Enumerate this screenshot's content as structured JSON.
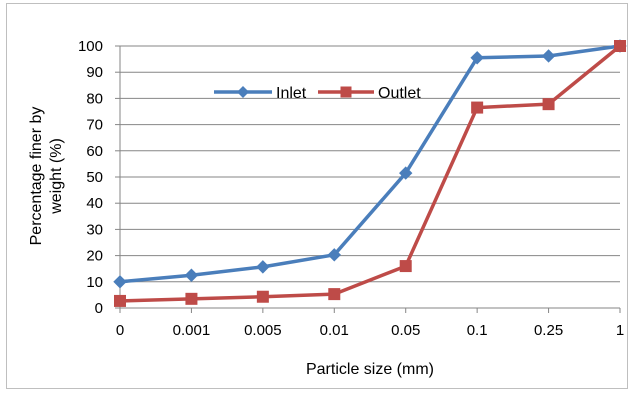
{
  "chart_data": {
    "type": "line",
    "categories": [
      "0",
      "0.001",
      "0.005",
      "0.01",
      "0.05",
      "0.1",
      "0.25",
      "1"
    ],
    "series": [
      {
        "name": "Inlet",
        "color": "#4a7ebb",
        "marker": "diamond",
        "values": [
          10,
          12.5,
          15.7,
          20.3,
          51.5,
          95.5,
          96.2,
          100
        ]
      },
      {
        "name": "Outlet",
        "color": "#be4b48",
        "marker": "square",
        "values": [
          2.7,
          3.5,
          4.3,
          5.3,
          16,
          76.5,
          77.8,
          100
        ]
      }
    ],
    "xlabel": "Particle size (mm)",
    "ylabel_line1": "Percentage finer by",
    "ylabel_line2": "weight (%)",
    "ylim": [
      0,
      100
    ],
    "yticks": [
      0,
      10,
      20,
      30,
      40,
      50,
      60,
      70,
      80,
      90,
      100
    ],
    "grid": true,
    "legend_position": "top-center"
  }
}
